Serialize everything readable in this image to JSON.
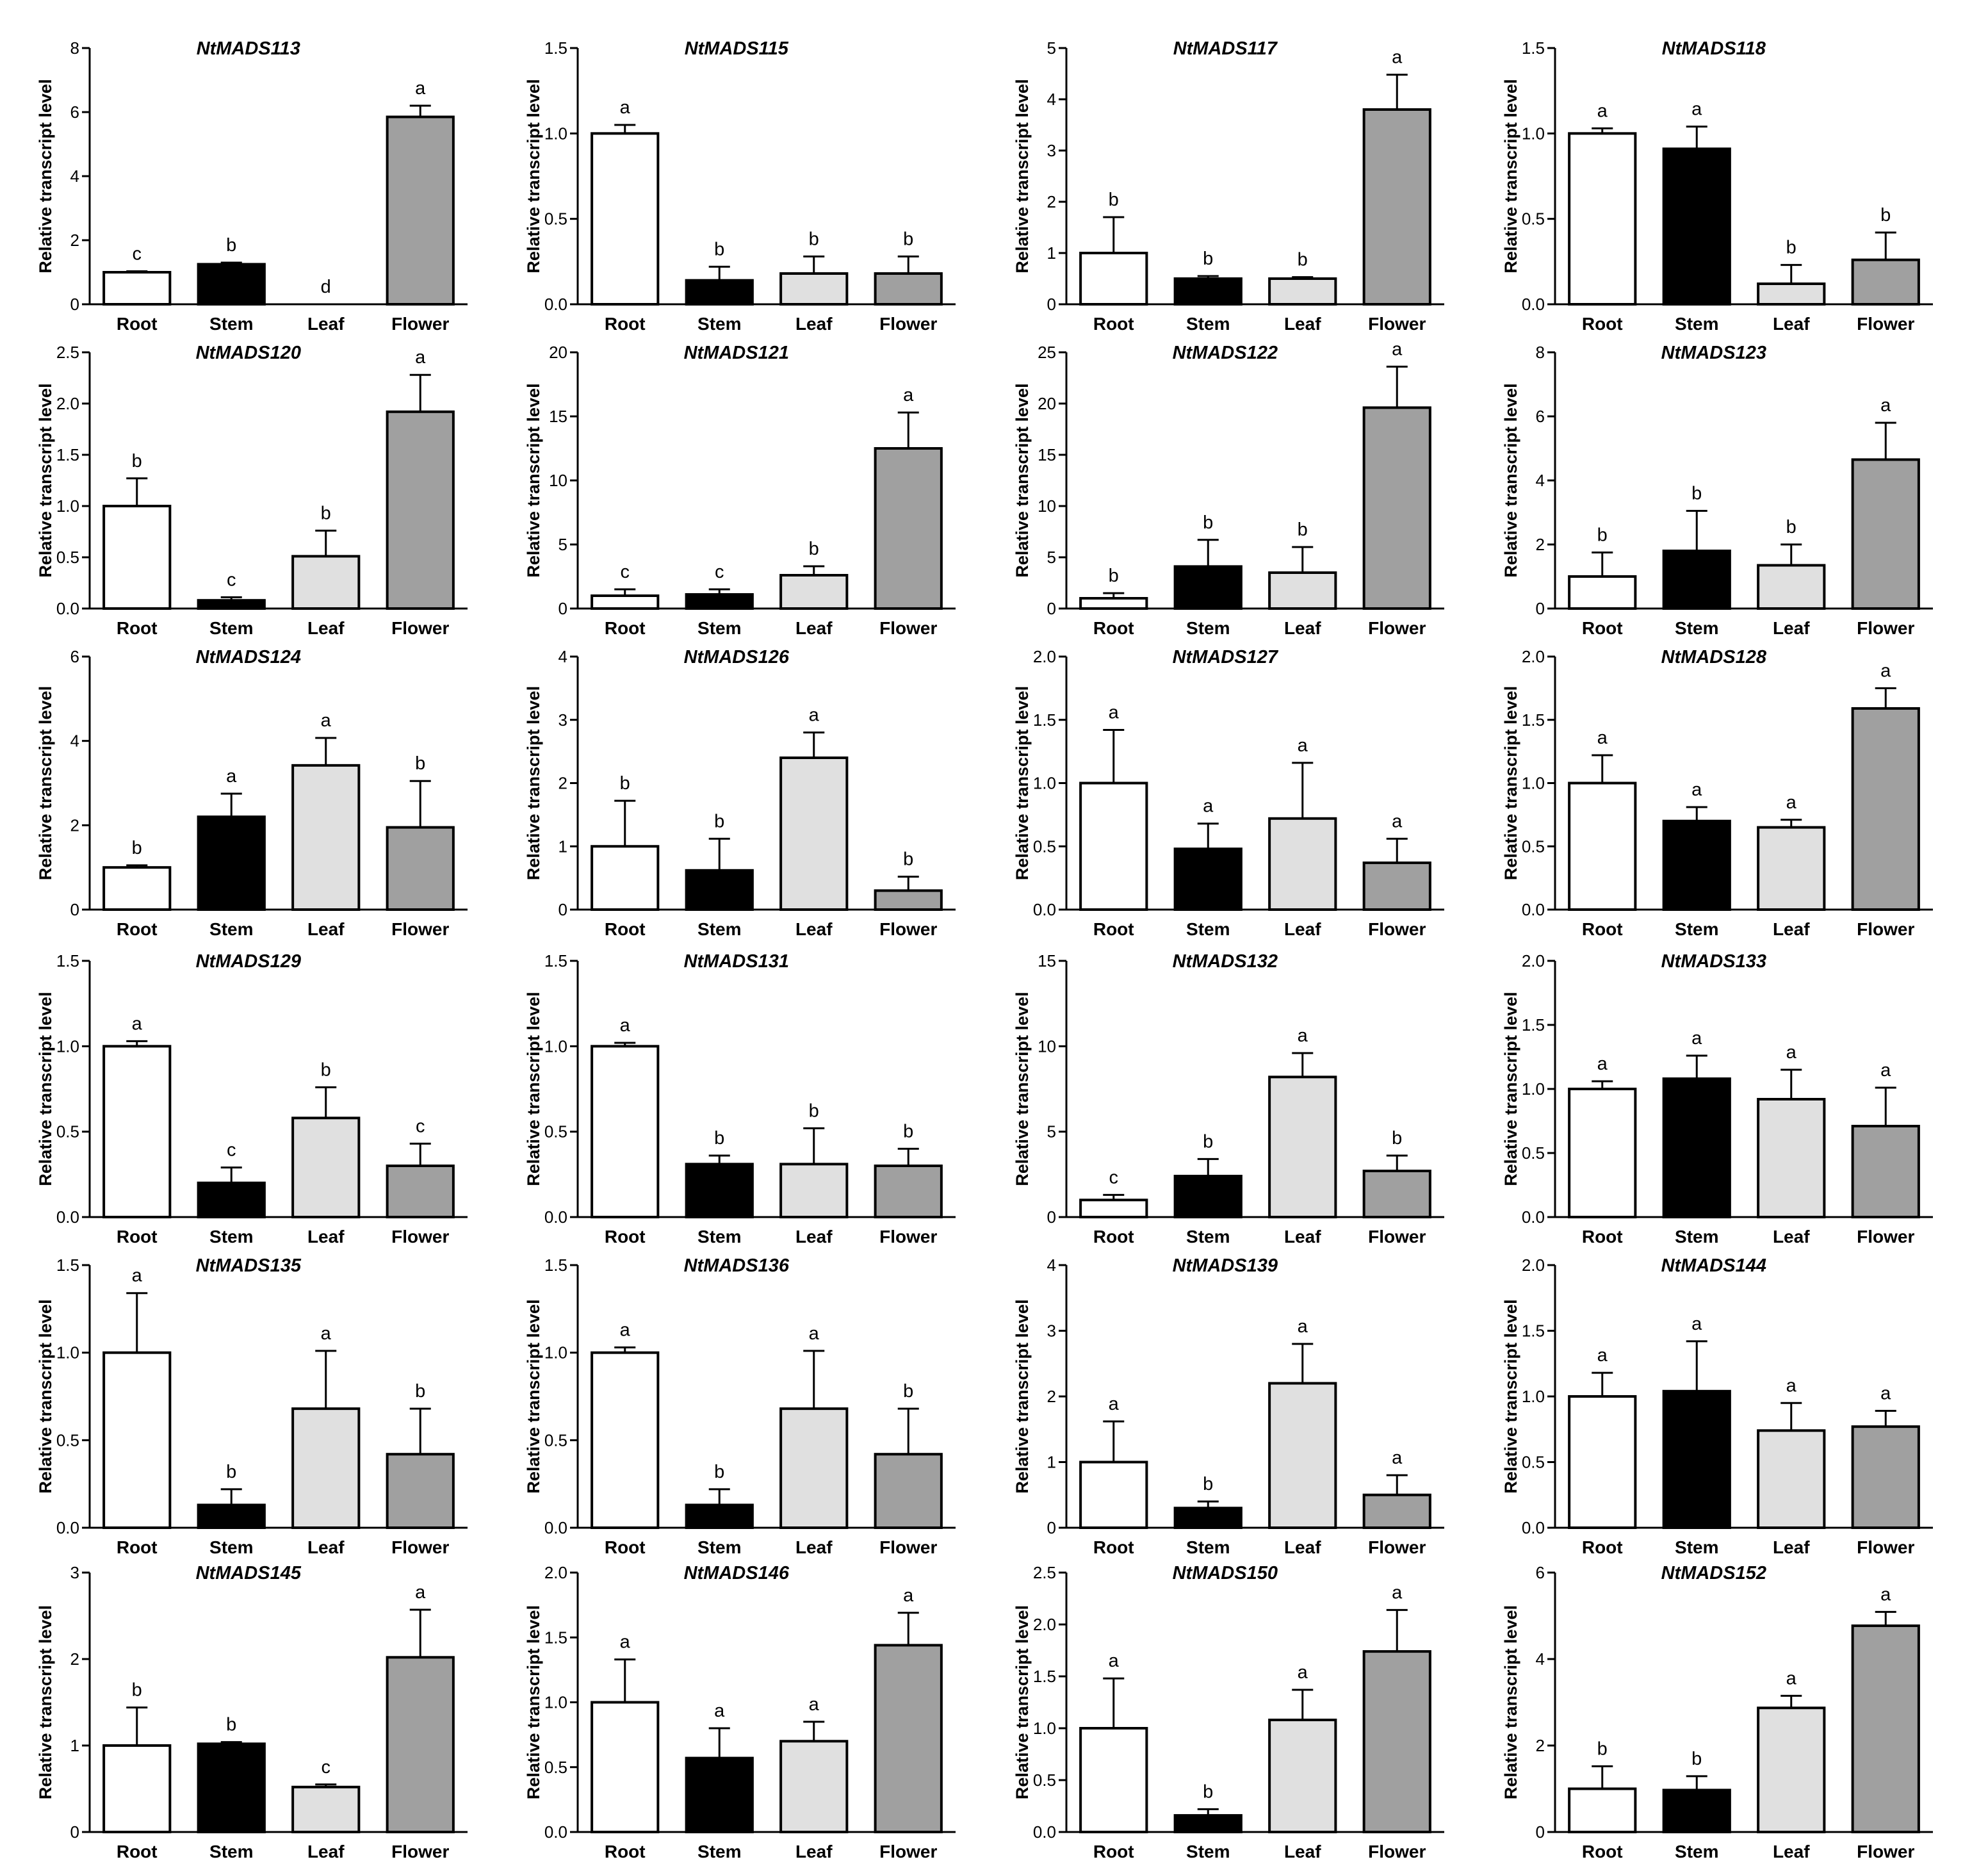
{
  "colors": {
    "root": "#ffffff",
    "stem": "#000000",
    "leaf": "#e0e0e0",
    "flower": "#a0a0a0",
    "axis": "#000000"
  },
  "chart_data": [
    {
      "type": "bar",
      "title": "NtMADS113",
      "ylabel": "Relative transcript level",
      "categories": [
        "Root",
        "Stem",
        "Leaf",
        "Flower"
      ],
      "values": [
        1.0,
        1.25,
        0.0,
        5.85
      ],
      "errors": [
        0.03,
        0.05,
        0.0,
        0.35
      ],
      "sig": [
        "c",
        "b",
        "d",
        "a"
      ],
      "ylim": [
        0,
        8
      ],
      "ticks": [
        "0",
        "2",
        "4",
        "6",
        "8"
      ]
    },
    {
      "type": "bar",
      "title": "NtMADS115",
      "ylabel": "Relative transcript level",
      "categories": [
        "Root",
        "Stem",
        "Leaf",
        "Flower"
      ],
      "values": [
        1.0,
        0.14,
        0.18,
        0.18
      ],
      "errors": [
        0.05,
        0.08,
        0.1,
        0.1
      ],
      "sig": [
        "a",
        "b",
        "b",
        "b"
      ],
      "ylim": [
        0,
        1.5
      ],
      "ticks": [
        "0.0",
        "0.5",
        "1.0",
        "1.5"
      ]
    },
    {
      "type": "bar",
      "title": "NtMADS117",
      "ylabel": "Relative transcript level",
      "categories": [
        "Root",
        "Stem",
        "Leaf",
        "Flower"
      ],
      "values": [
        1.0,
        0.5,
        0.5,
        3.8
      ],
      "errors": [
        0.7,
        0.05,
        0.03,
        0.68
      ],
      "sig": [
        "b",
        "b",
        "b",
        "a"
      ],
      "ylim": [
        0,
        5
      ],
      "ticks": [
        "0",
        "1",
        "2",
        "3",
        "4",
        "5"
      ]
    },
    {
      "type": "bar",
      "title": "NtMADS118",
      "ylabel": "Relative transcript level",
      "categories": [
        "Root",
        "Stem",
        "Leaf",
        "Flower"
      ],
      "values": [
        1.0,
        0.91,
        0.12,
        0.26
      ],
      "errors": [
        0.03,
        0.13,
        0.11,
        0.16
      ],
      "sig": [
        "a",
        "a",
        "b",
        "b"
      ],
      "ylim": [
        0,
        1.5
      ],
      "ticks": [
        "0.0",
        "0.5",
        "1.0",
        "1.5"
      ]
    },
    {
      "type": "bar",
      "title": "NtMADS120",
      "ylabel": "Relative transcript level",
      "categories": [
        "Root",
        "Stem",
        "Leaf",
        "Flower"
      ],
      "values": [
        1.0,
        0.08,
        0.51,
        1.92
      ],
      "errors": [
        0.27,
        0.03,
        0.25,
        0.36
      ],
      "sig": [
        "b",
        "c",
        "b",
        "a"
      ],
      "ylim": [
        0,
        2.5
      ],
      "ticks": [
        "0.0",
        "0.5",
        "1.0",
        "1.5",
        "2.0",
        "2.5"
      ]
    },
    {
      "type": "bar",
      "title": "NtMADS121",
      "ylabel": "Relative transcript level",
      "categories": [
        "Root",
        "Stem",
        "Leaf",
        "Flower"
      ],
      "values": [
        1.0,
        1.1,
        2.6,
        12.5
      ],
      "errors": [
        0.5,
        0.4,
        0.7,
        2.8
      ],
      "sig": [
        "c",
        "c",
        "b",
        "a"
      ],
      "ylim": [
        0,
        20
      ],
      "ticks": [
        "0",
        "5",
        "10",
        "15",
        "20"
      ]
    },
    {
      "type": "bar",
      "title": "NtMADS122",
      "ylabel": "Relative transcript level",
      "categories": [
        "Root",
        "Stem",
        "Leaf",
        "Flower"
      ],
      "values": [
        1.0,
        4.1,
        3.5,
        19.6
      ],
      "errors": [
        0.5,
        2.6,
        2.5,
        4.0
      ],
      "sig": [
        "b",
        "b",
        "b",
        "a"
      ],
      "ylim": [
        0,
        25
      ],
      "ticks": [
        "0",
        "5",
        "10",
        "15",
        "20",
        "25"
      ]
    },
    {
      "type": "bar",
      "title": "NtMADS123",
      "ylabel": "Relative transcript level",
      "categories": [
        "Root",
        "Stem",
        "Leaf",
        "Flower"
      ],
      "values": [
        1.0,
        1.8,
        1.35,
        4.65
      ],
      "errors": [
        0.75,
        1.25,
        0.65,
        1.15
      ],
      "sig": [
        "b",
        "b",
        "b",
        "a"
      ],
      "ylim": [
        0,
        8
      ],
      "ticks": [
        "0",
        "2",
        "4",
        "6",
        "8"
      ]
    },
    {
      "type": "bar",
      "title": "NtMADS124",
      "ylabel": "Relative transcript level",
      "categories": [
        "Root",
        "Stem",
        "Leaf",
        "Flower"
      ],
      "values": [
        1.0,
        2.2,
        3.42,
        1.95
      ],
      "errors": [
        0.05,
        0.55,
        0.65,
        1.1
      ],
      "sig": [
        "b",
        "a",
        "a",
        "b"
      ],
      "ylim": [
        0,
        6
      ],
      "ticks": [
        "0",
        "2",
        "4",
        "6"
      ]
    },
    {
      "type": "bar",
      "title": "NtMADS126",
      "ylabel": "Relative transcript level",
      "categories": [
        "Root",
        "Stem",
        "Leaf",
        "Flower"
      ],
      "values": [
        1.0,
        0.62,
        2.4,
        0.3
      ],
      "errors": [
        0.72,
        0.5,
        0.4,
        0.22
      ],
      "sig": [
        "b",
        "b",
        "a",
        "b"
      ],
      "ylim": [
        0,
        4
      ],
      "ticks": [
        "0",
        "1",
        "2",
        "3",
        "4"
      ]
    },
    {
      "type": "bar",
      "title": "NtMADS127",
      "ylabel": "Relative transcript level",
      "categories": [
        "Root",
        "Stem",
        "Leaf",
        "Flower"
      ],
      "values": [
        1.0,
        0.48,
        0.72,
        0.37
      ],
      "errors": [
        0.42,
        0.2,
        0.44,
        0.19
      ],
      "sig": [
        "a",
        "a",
        "a",
        "a"
      ],
      "ylim": [
        0,
        2
      ],
      "ticks": [
        "0.0",
        "0.5",
        "1.0",
        "1.5",
        "2.0"
      ]
    },
    {
      "type": "bar",
      "title": "NtMADS128",
      "ylabel": "Relative transcript level",
      "categories": [
        "Root",
        "Stem",
        "Leaf",
        "Flower"
      ],
      "values": [
        1.0,
        0.7,
        0.65,
        1.59
      ],
      "errors": [
        0.22,
        0.11,
        0.06,
        0.16
      ],
      "sig": [
        "a",
        "a",
        "a",
        "a"
      ],
      "ylim": [
        0,
        2
      ],
      "ticks": [
        "0.0",
        "0.5",
        "1.0",
        "1.5",
        "2.0"
      ]
    },
    {
      "type": "bar",
      "title": "NtMADS129",
      "ylabel": "Relative transcript level",
      "categories": [
        "Root",
        "Stem",
        "Leaf",
        "Flower"
      ],
      "values": [
        1.0,
        0.2,
        0.58,
        0.3
      ],
      "errors": [
        0.03,
        0.09,
        0.18,
        0.13
      ],
      "sig": [
        "a",
        "c",
        "b",
        "c"
      ],
      "ylim": [
        0,
        1.5
      ],
      "ticks": [
        "0.0",
        "0.5",
        "1.0",
        "1.5"
      ]
    },
    {
      "type": "bar",
      "title": "NtMADS131",
      "ylabel": "Relative transcript level",
      "categories": [
        "Root",
        "Stem",
        "Leaf",
        "Flower"
      ],
      "values": [
        1.0,
        0.31,
        0.31,
        0.3
      ],
      "errors": [
        0.02,
        0.05,
        0.21,
        0.1
      ],
      "sig": [
        "a",
        "b",
        "b",
        "b"
      ],
      "ylim": [
        0,
        1.5
      ],
      "ticks": [
        "0.0",
        "0.5",
        "1.0",
        "1.5"
      ]
    },
    {
      "type": "bar",
      "title": "NtMADS132",
      "ylabel": "Relative transcript level",
      "categories": [
        "Root",
        "Stem",
        "Leaf",
        "Flower"
      ],
      "values": [
        1.0,
        2.4,
        8.2,
        2.7
      ],
      "errors": [
        0.3,
        1.0,
        1.4,
        0.9
      ],
      "sig": [
        "c",
        "b",
        "a",
        "b"
      ],
      "ylim": [
        0,
        15
      ],
      "ticks": [
        "0",
        "5",
        "10",
        "15"
      ]
    },
    {
      "type": "bar",
      "title": "NtMADS133",
      "ylabel": "Relative transcript level",
      "categories": [
        "Root",
        "Stem",
        "Leaf",
        "Flower"
      ],
      "values": [
        1.0,
        1.08,
        0.92,
        0.71
      ],
      "errors": [
        0.06,
        0.18,
        0.23,
        0.3
      ],
      "sig": [
        "a",
        "a",
        "a",
        "a"
      ],
      "ylim": [
        0,
        2
      ],
      "ticks": [
        "0.0",
        "0.5",
        "1.0",
        "1.5",
        "2.0"
      ]
    },
    {
      "type": "bar",
      "title": "NtMADS135",
      "ylabel": "Relative transcript level",
      "categories": [
        "Root",
        "Stem",
        "Leaf",
        "Flower"
      ],
      "values": [
        1.0,
        0.13,
        0.68,
        0.42
      ],
      "errors": [
        0.34,
        0.09,
        0.33,
        0.26
      ],
      "sig": [
        "a",
        "b",
        "a",
        "b"
      ],
      "ylim": [
        0,
        1.5
      ],
      "ticks": [
        "0.0",
        "0.5",
        "1.0",
        "1.5"
      ]
    },
    {
      "type": "bar",
      "title": "NtMADS136",
      "ylabel": "Relative transcript level",
      "categories": [
        "Root",
        "Stem",
        "Leaf",
        "Flower"
      ],
      "values": [
        1.0,
        0.13,
        0.68,
        0.42
      ],
      "errors": [
        0.03,
        0.09,
        0.33,
        0.26
      ],
      "sig": [
        "a",
        "b",
        "a",
        "b"
      ],
      "ylim": [
        0,
        1.5
      ],
      "ticks": [
        "0.0",
        "0.5",
        "1.0",
        "1.5"
      ]
    },
    {
      "type": "bar",
      "title": "NtMADS139",
      "ylabel": "Relative transcript level",
      "categories": [
        "Root",
        "Stem",
        "Leaf",
        "Flower"
      ],
      "values": [
        1.0,
        0.3,
        2.2,
        0.5
      ],
      "errors": [
        0.62,
        0.1,
        0.6,
        0.3
      ],
      "sig": [
        "a",
        "b",
        "a",
        "a"
      ],
      "ylim": [
        0,
        4
      ],
      "ticks": [
        "0",
        "1",
        "2",
        "3",
        "4"
      ]
    },
    {
      "type": "bar",
      "title": "NtMADS144",
      "ylabel": "Relative transcript level",
      "categories": [
        "Root",
        "Stem",
        "Leaf",
        "Flower"
      ],
      "values": [
        1.0,
        1.04,
        0.74,
        0.77
      ],
      "errors": [
        0.18,
        0.38,
        0.21,
        0.12
      ],
      "sig": [
        "a",
        "a",
        "a",
        "a"
      ],
      "ylim": [
        0,
        2
      ],
      "ticks": [
        "0.0",
        "0.5",
        "1.0",
        "1.5",
        "2.0"
      ]
    },
    {
      "type": "bar",
      "title": "NtMADS145",
      "ylabel": "Relative transcript level",
      "categories": [
        "Root",
        "Stem",
        "Leaf",
        "Flower"
      ],
      "values": [
        1.0,
        1.02,
        0.52,
        2.02
      ],
      "errors": [
        0.44,
        0.02,
        0.03,
        0.55
      ],
      "sig": [
        "b",
        "b",
        "c",
        "a"
      ],
      "ylim": [
        0,
        3
      ],
      "ticks": [
        "0",
        "1",
        "2",
        "3"
      ]
    },
    {
      "type": "bar",
      "title": "NtMADS146",
      "ylabel": "Relative transcript level",
      "categories": [
        "Root",
        "Stem",
        "Leaf",
        "Flower"
      ],
      "values": [
        1.0,
        0.57,
        0.7,
        1.44
      ],
      "errors": [
        0.33,
        0.23,
        0.15,
        0.25
      ],
      "sig": [
        "a",
        "a",
        "a",
        "a"
      ],
      "ylim": [
        0,
        2
      ],
      "ticks": [
        "0.0",
        "0.5",
        "1.0",
        "1.5",
        "2.0"
      ]
    },
    {
      "type": "bar",
      "title": "NtMADS150",
      "ylabel": "Relative transcript level",
      "categories": [
        "Root",
        "Stem",
        "Leaf",
        "Flower"
      ],
      "values": [
        1.0,
        0.16,
        1.08,
        1.74
      ],
      "errors": [
        0.48,
        0.06,
        0.29,
        0.4
      ],
      "sig": [
        "a",
        "b",
        "a",
        "a"
      ],
      "ylim": [
        0,
        2.5
      ],
      "ticks": [
        "0.0",
        "0.5",
        "1.0",
        "1.5",
        "2.0",
        "2.5"
      ]
    },
    {
      "type": "bar",
      "title": "NtMADS152",
      "ylabel": "Relative transcript level",
      "categories": [
        "Root",
        "Stem",
        "Leaf",
        "Flower"
      ],
      "values": [
        1.0,
        0.97,
        2.87,
        4.77
      ],
      "errors": [
        0.52,
        0.32,
        0.28,
        0.32
      ],
      "sig": [
        "b",
        "b",
        "a",
        "a"
      ],
      "ylim": [
        0,
        6
      ],
      "ticks": [
        "0",
        "2",
        "4",
        "6"
      ]
    }
  ]
}
